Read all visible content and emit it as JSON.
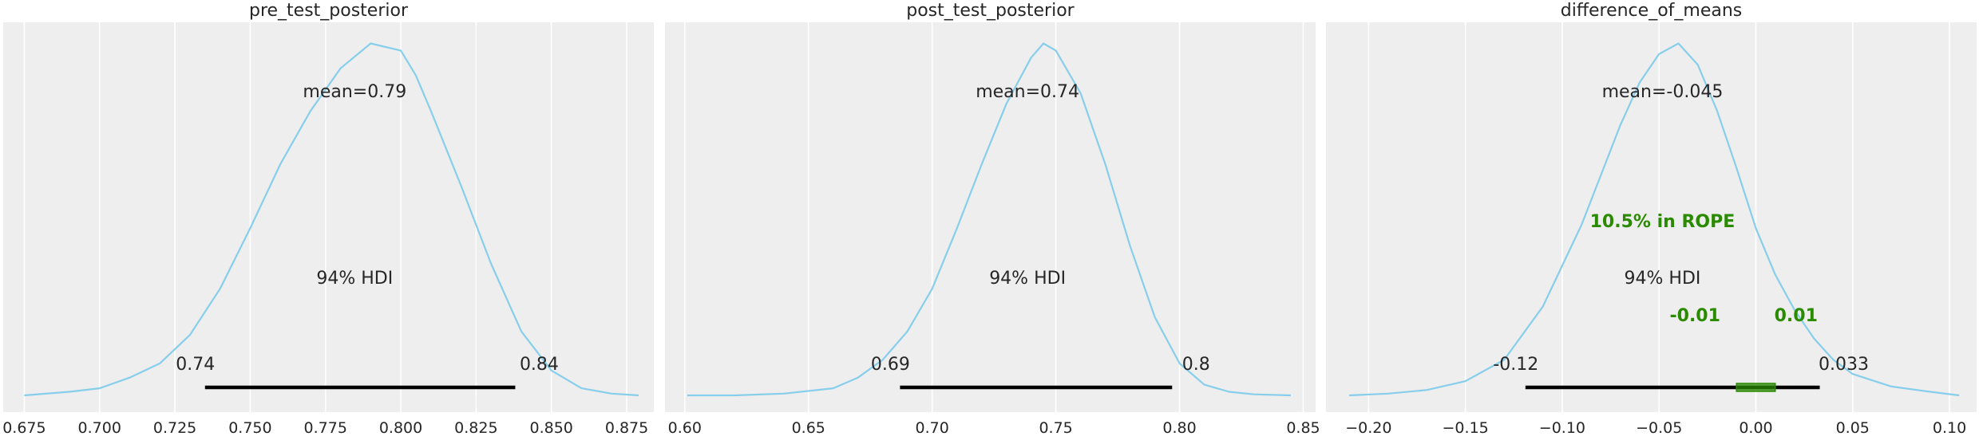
{
  "colors": {
    "background": "#eeeeee",
    "grid": "#ffffff",
    "density": "#87ceeb",
    "hdi_bar": "#000000",
    "rope": "#2a8a00",
    "text": "#262626"
  },
  "chart_data": [
    {
      "type": "line",
      "title": "pre_test_posterior",
      "xlim": [
        0.668,
        0.884
      ],
      "xticks": [
        0.675,
        0.7,
        0.725,
        0.75,
        0.775,
        0.8,
        0.825,
        0.85,
        0.875
      ],
      "xtick_labels": [
        "0.675",
        "0.700",
        "0.725",
        "0.750",
        "0.775",
        "0.800",
        "0.825",
        "0.850",
        "0.875"
      ],
      "grid": true,
      "x": [
        0.675,
        0.69,
        0.7,
        0.71,
        0.72,
        0.73,
        0.74,
        0.75,
        0.76,
        0.77,
        0.78,
        0.79,
        0.8,
        0.805,
        0.81,
        0.82,
        0.83,
        0.84,
        0.85,
        0.86,
        0.87,
        0.879
      ],
      "y": [
        0.0,
        0.01,
        0.02,
        0.05,
        0.09,
        0.17,
        0.3,
        0.47,
        0.65,
        0.8,
        0.92,
        0.99,
        0.97,
        0.9,
        0.8,
        0.59,
        0.37,
        0.18,
        0.07,
        0.02,
        0.005,
        0.0
      ],
      "mean_label": "mean=0.79",
      "hdi_label": "94% HDI",
      "hdi": [
        0.735,
        0.838
      ],
      "hdi_low_label": "0.74",
      "hdi_high_label": "0.84"
    },
    {
      "type": "line",
      "title": "post_test_posterior",
      "xlim": [
        0.592,
        0.855
      ],
      "xticks": [
        0.6,
        0.65,
        0.7,
        0.75,
        0.8,
        0.85
      ],
      "xtick_labels": [
        "0.60",
        "0.65",
        "0.70",
        "0.75",
        "0.80",
        "0.85"
      ],
      "grid": true,
      "x": [
        0.601,
        0.62,
        0.64,
        0.66,
        0.67,
        0.68,
        0.69,
        0.7,
        0.71,
        0.72,
        0.73,
        0.74,
        0.745,
        0.75,
        0.76,
        0.77,
        0.78,
        0.79,
        0.8,
        0.81,
        0.82,
        0.83,
        0.845
      ],
      "y": [
        0.0,
        0.0,
        0.005,
        0.02,
        0.05,
        0.1,
        0.18,
        0.3,
        0.47,
        0.65,
        0.82,
        0.95,
        0.99,
        0.97,
        0.85,
        0.65,
        0.42,
        0.22,
        0.09,
        0.03,
        0.01,
        0.003,
        0.0
      ],
      "mean_label": "mean=0.74",
      "hdi_label": "94% HDI",
      "hdi": [
        0.687,
        0.797
      ],
      "hdi_low_label": "0.69",
      "hdi_high_label": "0.8"
    },
    {
      "type": "line",
      "title": "difference_of_means",
      "xlim": [
        -0.222,
        0.114
      ],
      "xticks": [
        -0.2,
        -0.15,
        -0.1,
        -0.05,
        0.0,
        0.05,
        0.1
      ],
      "xtick_labels": [
        "−0.20",
        "−0.15",
        "−0.10",
        "−0.05",
        "0.00",
        "0.05",
        "0.10"
      ],
      "grid": true,
      "x": [
        -0.21,
        -0.19,
        -0.17,
        -0.15,
        -0.13,
        -0.11,
        -0.09,
        -0.07,
        -0.06,
        -0.05,
        -0.04,
        -0.03,
        -0.02,
        -0.01,
        0.0,
        0.01,
        0.02,
        0.03,
        0.04,
        0.05,
        0.07,
        0.09,
        0.105
      ],
      "y": [
        0.0,
        0.005,
        0.015,
        0.04,
        0.1,
        0.25,
        0.48,
        0.76,
        0.88,
        0.96,
        0.99,
        0.93,
        0.8,
        0.64,
        0.47,
        0.34,
        0.24,
        0.16,
        0.1,
        0.06,
        0.025,
        0.01,
        0.0
      ],
      "mean_label": "mean=-0.045",
      "hdi_label": "94% HDI",
      "hdi": [
        -0.119,
        0.033
      ],
      "hdi_low_label": "-0.12",
      "hdi_high_label": "0.033",
      "rope": [
        -0.01,
        0.01
      ],
      "rope_label": "10.5% in ROPE",
      "rope_low_label": "-0.01",
      "rope_high_label": "0.01"
    }
  ]
}
